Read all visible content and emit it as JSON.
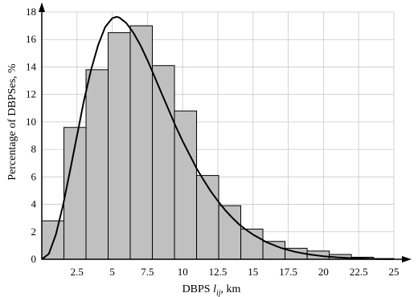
{
  "chart_data": {
    "type": "bar",
    "ylabel": "Percentage of DBPSes, %",
    "xlabel_prefix": "DBPS ",
    "xlabel_symbol": "l",
    "xlabel_subscript": "ij",
    "xlabel_suffix": ", km",
    "xlim": [
      0,
      25
    ],
    "ylim": [
      0,
      18
    ],
    "x_ticks": [
      2.5,
      5,
      7.5,
      10,
      12.5,
      15,
      17.5,
      20,
      22.5,
      25
    ],
    "x_tick_labels": [
      "2.5",
      "5",
      "7.5",
      "10",
      "12.5",
      "15",
      "17.5",
      "20",
      "22.5",
      "25"
    ],
    "y_ticks": [
      0,
      2,
      4,
      6,
      8,
      10,
      12,
      14,
      16,
      18
    ],
    "y_tick_labels": [
      "0",
      "2",
      "4",
      "6",
      "8",
      "10",
      "12",
      "14",
      "16",
      "18"
    ],
    "grid": true,
    "bins": [
      {
        "from": 0.0,
        "to": 1.57,
        "value": 2.8
      },
      {
        "from": 1.57,
        "to": 3.14,
        "value": 9.6
      },
      {
        "from": 3.14,
        "to": 4.71,
        "value": 13.8
      },
      {
        "from": 4.71,
        "to": 6.28,
        "value": 16.5
      },
      {
        "from": 6.28,
        "to": 7.85,
        "value": 17.0
      },
      {
        "from": 7.85,
        "to": 9.42,
        "value": 14.1
      },
      {
        "from": 9.42,
        "to": 10.99,
        "value": 10.8
      },
      {
        "from": 10.99,
        "to": 12.56,
        "value": 6.1
      },
      {
        "from": 12.56,
        "to": 14.13,
        "value": 3.9
      },
      {
        "from": 14.13,
        "to": 15.7,
        "value": 2.2
      },
      {
        "from": 15.7,
        "to": 17.27,
        "value": 1.3
      },
      {
        "from": 17.27,
        "to": 18.84,
        "value": 0.8
      },
      {
        "from": 18.84,
        "to": 20.41,
        "value": 0.6
      },
      {
        "from": 20.41,
        "to": 21.98,
        "value": 0.35
      },
      {
        "from": 21.98,
        "to": 23.55,
        "value": 0.15
      },
      {
        "from": 23.55,
        "to": 25.0,
        "value": 0.05
      }
    ],
    "curve": {
      "x": [
        0,
        0.5,
        1,
        1.5,
        2,
        2.5,
        3,
        3.5,
        4,
        4.5,
        5,
        5.3,
        5.5,
        6,
        6.5,
        7,
        7.5,
        8,
        8.5,
        9,
        9.5,
        10,
        10.5,
        11,
        11.5,
        12,
        12.5,
        13,
        13.5,
        14,
        14.5,
        15,
        16,
        17,
        18,
        19,
        20,
        21,
        22,
        23,
        24,
        25
      ],
      "y": [
        0,
        0.4,
        1.8,
        3.9,
        6.4,
        9.0,
        11.6,
        13.8,
        15.6,
        16.9,
        17.55,
        17.65,
        17.6,
        17.2,
        16.5,
        15.6,
        14.5,
        13.3,
        12.1,
        10.9,
        9.7,
        8.6,
        7.6,
        6.6,
        5.75,
        4.95,
        4.25,
        3.6,
        3.05,
        2.55,
        2.15,
        1.8,
        1.22,
        0.82,
        0.54,
        0.35,
        0.22,
        0.14,
        0.08,
        0.05,
        0.02,
        0.01
      ]
    }
  }
}
